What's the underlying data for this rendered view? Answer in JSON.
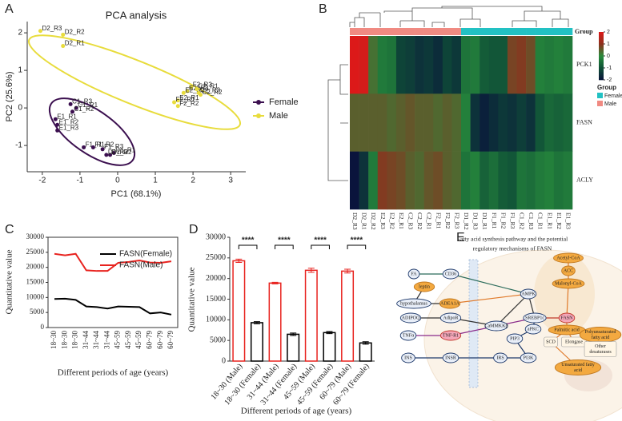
{
  "panel_labels": [
    "A",
    "B",
    "C",
    "D",
    "E"
  ],
  "chart_data": [
    {
      "type": "scatter",
      "title": "PCA analysis",
      "x_label": "PC1 (68.1%)",
      "y_label": "PC2 (25.6%)",
      "xlim": [
        -2.4,
        3.4
      ],
      "xticks": [
        -2,
        -1,
        0,
        1,
        2,
        3
      ],
      "ylim": [
        -1.7,
        2.3
      ],
      "yticks": [
        -1,
        0,
        1,
        2
      ],
      "series": [
        {
          "name": "Female",
          "color": "#3b0f4f",
          "labels": [
            "C1_R3",
            "C1_R1",
            "C1_R2",
            "E1_R1",
            "E1_R2",
            "E1_R3",
            "F1_R1",
            "F1_R2",
            "F1_R3",
            "D1_R1",
            "D1_R2",
            "D1_R3"
          ],
          "x": [
            -1.25,
            -1.1,
            -1.2,
            -1.65,
            -1.6,
            -1.6,
            -0.9,
            -0.65,
            -0.4,
            -0.1,
            -0.2,
            -0.3
          ],
          "values": [
            0.1,
            0.0,
            -0.1,
            -0.3,
            -0.45,
            -0.6,
            -1.05,
            -1.05,
            -1.1,
            -1.2,
            -1.25,
            -1.25
          ]
        },
        {
          "name": "Male",
          "color": "#e8dc3c",
          "labels": [
            "D2_R3",
            "D2_R2",
            "D2_R1",
            "F2_R3",
            "E2_R3",
            "E2_R2",
            "C2_R3",
            "C2_R2",
            "C2_R1",
            "E2_R1",
            "F2_R1",
            "F2_R2"
          ],
          "x": [
            -2.05,
            -1.45,
            -1.45,
            1.95,
            1.85,
            1.75,
            2.15,
            2.2,
            2.1,
            1.6,
            1.5,
            1.6
          ],
          "values": [
            2.05,
            1.95,
            1.65,
            0.55,
            0.45,
            0.4,
            0.4,
            0.35,
            0.5,
            0.2,
            0.15,
            0.05
          ]
        }
      ]
    },
    {
      "type": "heatmap",
      "group_title": "Group",
      "rows": [
        "PCK1",
        "FASN",
        "ACLY"
      ],
      "columns": [
        "D2_R3",
        "D2_R1",
        "D2_R2",
        "E2_R3",
        "E2_R2",
        "E2_R1",
        "C2_R3",
        "C2_R2",
        "C2_R1",
        "F2_R1",
        "F2_R2",
        "F2_R3",
        "D1_R2",
        "D1_R3",
        "D1_R1",
        "F1_R1",
        "F1_R2",
        "F1_R3",
        "C1_R2",
        "C1_R3",
        "C1_R1",
        "E1_R1",
        "E1_R2",
        "E1_R3"
      ],
      "column_groups": [
        "Male",
        "Male",
        "Male",
        "Male",
        "Male",
        "Male",
        "Male",
        "Male",
        "Male",
        "Male",
        "Male",
        "Male",
        "Female",
        "Female",
        "Female",
        "Female",
        "Female",
        "Female",
        "Female",
        "Female",
        "Female",
        "Female",
        "Female",
        "Female"
      ],
      "groups": [
        {
          "name": "Female",
          "color": "#22c1c3"
        },
        {
          "name": "Male",
          "color": "#f08a82"
        }
      ],
      "values": [
        [
          2,
          1.9,
          0.3,
          -0.3,
          -0.4,
          -1.2,
          -1.3,
          -1.5,
          -1.4,
          -1.6,
          -1.2,
          -1.4,
          -0.4,
          -0.3,
          -0.8,
          -0.9,
          -0.9,
          0.8,
          0.9,
          0.7,
          -0.2,
          -0.3,
          -0.2,
          -0.3
        ],
        [
          0.5,
          0.5,
          0.5,
          0.5,
          0.4,
          0.5,
          0.6,
          0.5,
          0.5,
          0.4,
          0.5,
          0.4,
          -0.2,
          -1.5,
          -1.8,
          -1.6,
          -1.4,
          -1.5,
          -1.3,
          -1.5,
          -0.9,
          -0.6,
          -0.7,
          -0.6
        ],
        [
          -2,
          -1.5,
          -0.3,
          0.9,
          0.8,
          0.7,
          0.5,
          0.4,
          0.6,
          0.7,
          0.5,
          0.4,
          -0.4,
          -0.2,
          -0.7,
          -0.5,
          -0.8,
          -0.9,
          -0.4,
          -0.5,
          -0.3,
          -0.2,
          -0.4,
          -0.3
        ]
      ],
      "zlim": [
        -2,
        2
      ],
      "zticks": [
        -2,
        -1,
        0,
        1,
        2
      ]
    },
    {
      "type": "line",
      "x_label": "Different periods of age (years)",
      "y_label": "Quantitative value",
      "categories": [
        "18~30",
        "18~30",
        "18~30",
        "31~44",
        "31~44",
        "31~44",
        "45~59",
        "45~59",
        "45~59",
        "60~79",
        "60~79",
        "60~79"
      ],
      "ylim": [
        0,
        30000
      ],
      "yticks": [
        0,
        5000,
        10000,
        15000,
        20000,
        25000,
        30000
      ],
      "series": [
        {
          "name": "FASN(Female)",
          "color": "#000000",
          "values": [
            9500,
            9600,
            9200,
            7000,
            6800,
            6300,
            7000,
            6900,
            6800,
            4700,
            5000,
            4300
          ]
        },
        {
          "name": "FASN(Male)",
          "color": "#e8231f",
          "values": [
            24500,
            24000,
            24500,
            19000,
            18800,
            18800,
            21500,
            21800,
            22300,
            21600,
            21500,
            22000
          ]
        }
      ]
    },
    {
      "type": "bar",
      "x_label": "Different periods of age (years)",
      "y_label": "Quantitative value",
      "categories": [
        "18~30 (Male)",
        "18~30 (Female)",
        "31~44 (Male)",
        "31~44 (Female)",
        "45~59 (Male)",
        "45~59 (Female)",
        "60~79 (Male)",
        "60~79 (Female)"
      ],
      "values": [
        24300,
        9300,
        18900,
        6500,
        22000,
        6900,
        21800,
        4400
      ],
      "errors": [
        400,
        250,
        200,
        300,
        500,
        250,
        450,
        300
      ],
      "colors": [
        "#e8231f",
        "#000000",
        "#e8231f",
        "#000000",
        "#e8231f",
        "#000000",
        "#e8231f",
        "#000000"
      ],
      "significance": [
        "****",
        "****",
        "****",
        "****"
      ],
      "ylim": [
        0,
        30000
      ],
      "yticks": [
        0,
        5000,
        10000,
        15000,
        20000,
        25000,
        30000
      ]
    }
  ],
  "diagram": {
    "title_lines": [
      "Fatty acid synthesis pathway and the potential",
      "regulatory mechanisms of FASN"
    ],
    "nodes": [
      [
        "FA"
      ],
      [
        "CD36"
      ],
      [
        "leptin"
      ],
      [
        "hypothalamus"
      ],
      [
        "ADEA1A"
      ],
      [
        "ADIPOQ"
      ],
      [
        "AdipoR"
      ],
      [
        "CaMMKKβ"
      ],
      [
        "AMPK"
      ],
      [
        "SREBP1c"
      ],
      [
        "FASN"
      ],
      [
        "TNFα"
      ],
      [
        "TNF-R1"
      ],
      [
        "PIP3"
      ],
      [
        "aPKC"
      ],
      [
        "INS"
      ],
      [
        "INSR"
      ],
      [
        "IRS"
      ],
      [
        "PI3K"
      ],
      [
        "Acetyl-CoA"
      ],
      [
        "ACC"
      ],
      [
        "Malonyl-CoA"
      ],
      [
        "Palmitic acid"
      ],
      [
        "Elongase"
      ],
      [
        "SCD"
      ],
      [
        "Polyunsaturated",
        "fatty acid"
      ],
      [
        "Other",
        "desaturases"
      ],
      [
        "Unsaturated fatty",
        "acid"
      ]
    ]
  }
}
